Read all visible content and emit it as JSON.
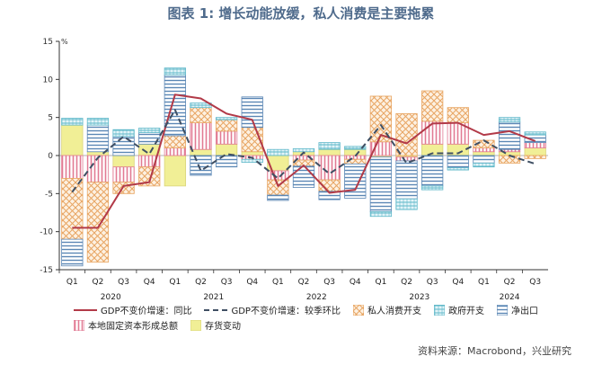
{
  "title": "图表 1: 增长动能放缓，私人消费是主要拖累",
  "source": "资料来源：Macrobond，兴业研究",
  "y_unit": "%",
  "colors": {
    "yoy": "#b23a48",
    "qoq": "#3f4f63",
    "consumption": "#e8a562",
    "government": "#5fb8c9",
    "net_exports": "#5b87b5",
    "capital_formation": "#e27b94",
    "inventory": "#f1ef96"
  },
  "chart_data": {
    "type": "bar",
    "ylim": [
      -15,
      15
    ],
    "yticks": [
      15,
      10,
      5,
      0,
      -5,
      -10,
      -15
    ],
    "categories": [
      "Q1",
      "Q2",
      "Q3",
      "Q4",
      "Q1",
      "Q2",
      "Q3",
      "Q4",
      "Q1",
      "Q2",
      "Q3",
      "Q4",
      "Q1",
      "Q2",
      "Q3",
      "Q4",
      "Q1",
      "Q2",
      "Q3"
    ],
    "year_groups": [
      {
        "label": "2020",
        "start": 0,
        "end": 3
      },
      {
        "label": "2021",
        "start": 4,
        "end": 7
      },
      {
        "label": "2022",
        "start": 8,
        "end": 11
      },
      {
        "label": "2023",
        "start": 12,
        "end": 15
      },
      {
        "label": "2024",
        "start": 16,
        "end": 18
      }
    ],
    "legend": [
      {
        "key": "yoy",
        "label": "GDP不变价增速：同比",
        "kind": "line"
      },
      {
        "key": "qoq",
        "label": "GDP不变价增速：较季环比",
        "kind": "dash"
      },
      {
        "key": "consumption",
        "label": "私人消费开支",
        "kind": "bar"
      },
      {
        "key": "government",
        "label": "政府开支",
        "kind": "bar"
      },
      {
        "key": "net_exports",
        "label": "净出口",
        "kind": "bar"
      },
      {
        "key": "capital_formation",
        "label": "本地固定资本形成总额",
        "kind": "bar"
      },
      {
        "key": "inventory",
        "label": "存货变动",
        "kind": "bar"
      }
    ],
    "series": [
      {
        "key": "inventory",
        "name": "存货变动",
        "values": [
          4.0,
          0.5,
          -1.5,
          1.5,
          -4.0,
          0.8,
          1.5,
          0.5,
          -2.0,
          0.5,
          0.8,
          0.8,
          -0.2,
          -0.2,
          1.5,
          1.5,
          0.5,
          0.5,
          1.0
        ]
      },
      {
        "key": "capital_formation",
        "name": "本地固定资本形成总额",
        "values": [
          -3.0,
          -3.5,
          -2.0,
          -1.5,
          1.0,
          3.5,
          1.7,
          -0.5,
          -1.2,
          -0.6,
          -3.2,
          -0.5,
          1.8,
          -0.5,
          3.0,
          2.8,
          0.5,
          0.3,
          0.7
        ]
      },
      {
        "key": "consumption",
        "name": "私人消费开支",
        "values": [
          -8.0,
          -10.5,
          -1.5,
          -2.5,
          1.6,
          2.0,
          1.5,
          3.2,
          -2.0,
          -0.8,
          -1.5,
          -0.6,
          6.0,
          5.5,
          4.0,
          2.0,
          1.0,
          -1.0,
          -0.4
        ]
      },
      {
        "key": "net_exports",
        "name": "净出口",
        "values": [
          -3.5,
          3.5,
          2.5,
          1.5,
          8.0,
          -2.6,
          -1.5,
          4.0,
          -0.7,
          -2.8,
          -1.1,
          -4.5,
          -7.2,
          -5.0,
          -4.0,
          -1.6,
          -1.0,
          3.6,
          1.0
        ]
      },
      {
        "key": "government",
        "name": "政府开支",
        "values": [
          0.9,
          0.9,
          0.9,
          0.6,
          0.9,
          0.6,
          0.3,
          -0.4,
          0.8,
          0.4,
          0.9,
          0.4,
          -0.6,
          -1.4,
          -0.5,
          -0.3,
          -0.5,
          0.6,
          0.4
        ]
      }
    ],
    "lines": [
      {
        "key": "yoy",
        "name": "GDP不变价增速：同比",
        "values": [
          -9.5,
          -9.5,
          -4.0,
          -3.5,
          8.0,
          7.5,
          5.5,
          4.7,
          -4.0,
          -1.3,
          -4.9,
          -4.5,
          2.7,
          1.6,
          4.2,
          4.3,
          2.7,
          3.2,
          1.9
        ]
      },
      {
        "key": "qoq",
        "name": "GDP不变价增速：较季环比",
        "values": [
          -4.8,
          -0.3,
          2.5,
          0.2,
          6.0,
          -2.0,
          0.2,
          -0.3,
          -3.0,
          0.4,
          -2.4,
          -0.1,
          4.0,
          -1.0,
          0.3,
          0.3,
          2.0,
          0.0,
          -1.1
        ]
      }
    ]
  }
}
